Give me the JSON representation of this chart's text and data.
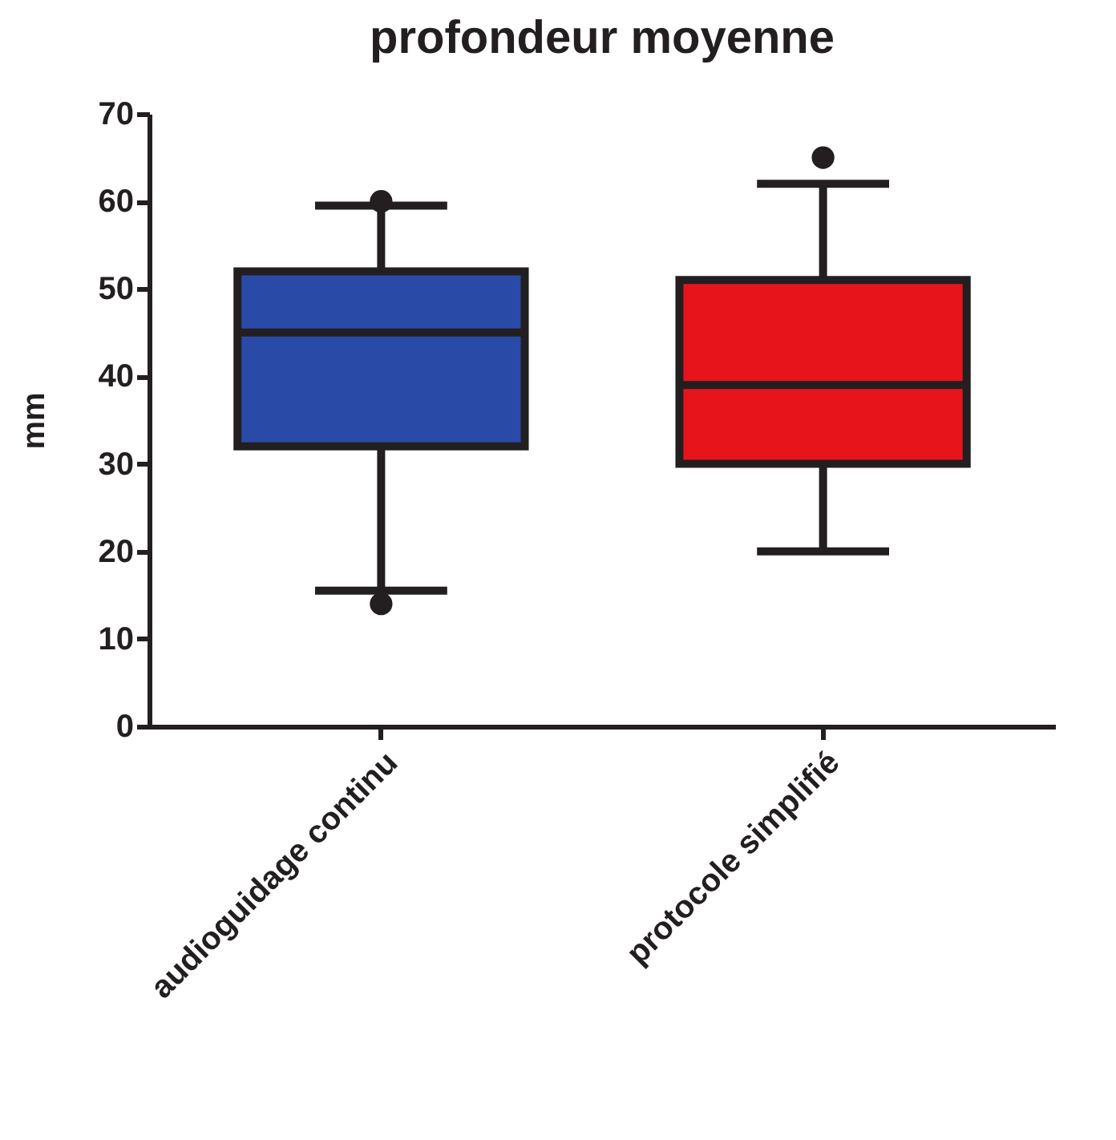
{
  "chart_data": {
    "type": "box",
    "title": "profondeur moyenne",
    "ylabel": "mm",
    "categories": [
      "audioguidage continu",
      "protocole simplifié"
    ],
    "colors": [
      "#2a4aa8",
      "#e8141c"
    ],
    "boxes": [
      {
        "low": 15.5,
        "q1": 32,
        "median": 45,
        "q3": 52,
        "high": 59.5,
        "outliers": [
          60,
          14
        ]
      },
      {
        "low": 20,
        "q1": 30,
        "median": 39,
        "q3": 51,
        "high": 62,
        "outliers": [
          65
        ]
      }
    ],
    "ylim": [
      0,
      70
    ],
    "yticks": [
      0,
      10,
      20,
      30,
      40,
      50,
      60,
      70
    ],
    "grid": false
  }
}
